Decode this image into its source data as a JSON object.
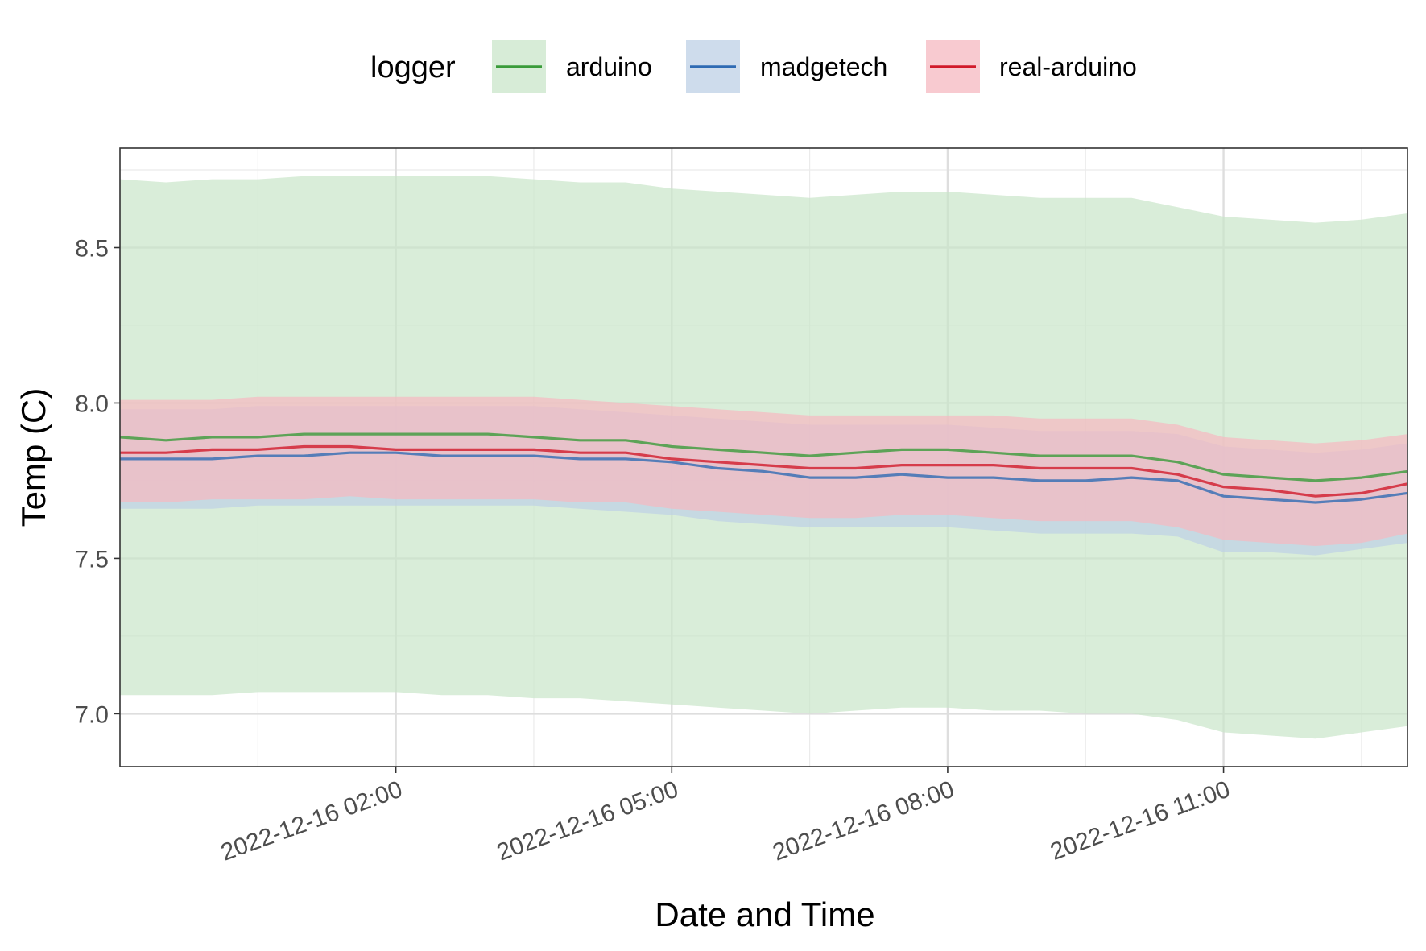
{
  "chart_data": {
    "type": "line",
    "title": "",
    "xlabel": "Date and Time",
    "ylabel": "Temp (C)",
    "legend": {
      "title": "logger",
      "placement": "top",
      "entries": [
        "arduino",
        "madgetech",
        "real-arduino"
      ]
    },
    "grid": true,
    "x_range": [
      "2022-12-15 23:00",
      "2022-12-16 13:00"
    ],
    "xlim_hours": [
      0,
      14
    ],
    "ylim": [
      6.83,
      8.82
    ],
    "y_ticks": [
      7.0,
      7.5,
      8.0,
      8.5
    ],
    "y_tick_labels": [
      "7.0",
      "7.5",
      "8.0",
      "8.5"
    ],
    "x_ticks": [
      3,
      6,
      9,
      12
    ],
    "x_tick_labels": [
      "2022-12-16 02:00",
      "2022-12-16 05:00",
      "2022-12-16 08:00",
      "2022-12-16 11:00"
    ],
    "x": [
      0,
      0.5,
      1,
      1.5,
      2,
      2.5,
      3,
      3.5,
      4,
      4.5,
      5,
      5.5,
      6,
      6.5,
      7,
      7.5,
      8,
      8.5,
      9,
      9.5,
      10,
      10.5,
      11,
      11.5,
      12,
      12.5,
      13,
      13.5,
      14
    ],
    "series": [
      {
        "name": "arduino",
        "color": "#3a9b3a",
        "ribbon_color": "#c9e5c9",
        "values": [
          7.89,
          7.88,
          7.89,
          7.89,
          7.9,
          7.9,
          7.9,
          7.9,
          7.9,
          7.89,
          7.88,
          7.88,
          7.86,
          7.85,
          7.84,
          7.83,
          7.84,
          7.85,
          7.85,
          7.84,
          7.83,
          7.83,
          7.83,
          7.81,
          7.77,
          7.76,
          7.75,
          7.76,
          7.78
        ],
        "lower": [
          7.06,
          7.06,
          7.06,
          7.07,
          7.07,
          7.07,
          7.07,
          7.06,
          7.06,
          7.05,
          7.05,
          7.04,
          7.03,
          7.02,
          7.01,
          7.0,
          7.01,
          7.02,
          7.02,
          7.01,
          7.01,
          7.0,
          7.0,
          6.98,
          6.94,
          6.93,
          6.92,
          6.94,
          6.96
        ],
        "upper": [
          8.72,
          8.71,
          8.72,
          8.72,
          8.73,
          8.73,
          8.73,
          8.73,
          8.73,
          8.72,
          8.71,
          8.71,
          8.69,
          8.68,
          8.67,
          8.66,
          8.67,
          8.68,
          8.68,
          8.67,
          8.66,
          8.66,
          8.66,
          8.63,
          8.6,
          8.59,
          8.58,
          8.59,
          8.61
        ]
      },
      {
        "name": "madgetech",
        "color": "#2f6bb3",
        "ribbon_color": "#bed0e6",
        "values": [
          7.82,
          7.82,
          7.82,
          7.83,
          7.83,
          7.84,
          7.84,
          7.83,
          7.83,
          7.83,
          7.82,
          7.82,
          7.81,
          7.79,
          7.78,
          7.76,
          7.76,
          7.77,
          7.76,
          7.76,
          7.75,
          7.75,
          7.76,
          7.75,
          7.7,
          7.69,
          7.68,
          7.69,
          7.71
        ],
        "lower": [
          7.66,
          7.66,
          7.66,
          7.67,
          7.67,
          7.67,
          7.67,
          7.67,
          7.67,
          7.67,
          7.66,
          7.65,
          7.64,
          7.62,
          7.61,
          7.6,
          7.6,
          7.6,
          7.6,
          7.59,
          7.58,
          7.58,
          7.58,
          7.57,
          7.52,
          7.52,
          7.51,
          7.53,
          7.55
        ],
        "upper": [
          7.98,
          7.98,
          7.98,
          7.99,
          7.99,
          7.99,
          7.99,
          7.99,
          7.99,
          7.99,
          7.98,
          7.97,
          7.96,
          7.95,
          7.94,
          7.93,
          7.93,
          7.93,
          7.93,
          7.92,
          7.91,
          7.91,
          7.91,
          7.9,
          7.86,
          7.85,
          7.84,
          7.85,
          7.87
        ]
      },
      {
        "name": "real-arduino",
        "color": "#d11a2a",
        "ribbon_color": "#f6b8c0",
        "values": [
          7.84,
          7.84,
          7.85,
          7.85,
          7.86,
          7.86,
          7.85,
          7.85,
          7.85,
          7.85,
          7.84,
          7.84,
          7.82,
          7.81,
          7.8,
          7.79,
          7.79,
          7.8,
          7.8,
          7.8,
          7.79,
          7.79,
          7.79,
          7.77,
          7.73,
          7.72,
          7.7,
          7.71,
          7.74
        ],
        "lower": [
          7.68,
          7.68,
          7.69,
          7.69,
          7.69,
          7.7,
          7.69,
          7.69,
          7.69,
          7.69,
          7.68,
          7.68,
          7.66,
          7.65,
          7.64,
          7.63,
          7.63,
          7.64,
          7.64,
          7.63,
          7.62,
          7.62,
          7.62,
          7.6,
          7.56,
          7.55,
          7.54,
          7.55,
          7.58
        ],
        "upper": [
          8.01,
          8.01,
          8.01,
          8.02,
          8.02,
          8.02,
          8.02,
          8.02,
          8.02,
          8.02,
          8.01,
          8.0,
          7.99,
          7.98,
          7.97,
          7.96,
          7.96,
          7.96,
          7.96,
          7.96,
          7.95,
          7.95,
          7.95,
          7.93,
          7.89,
          7.88,
          7.87,
          7.88,
          7.9
        ]
      }
    ]
  }
}
